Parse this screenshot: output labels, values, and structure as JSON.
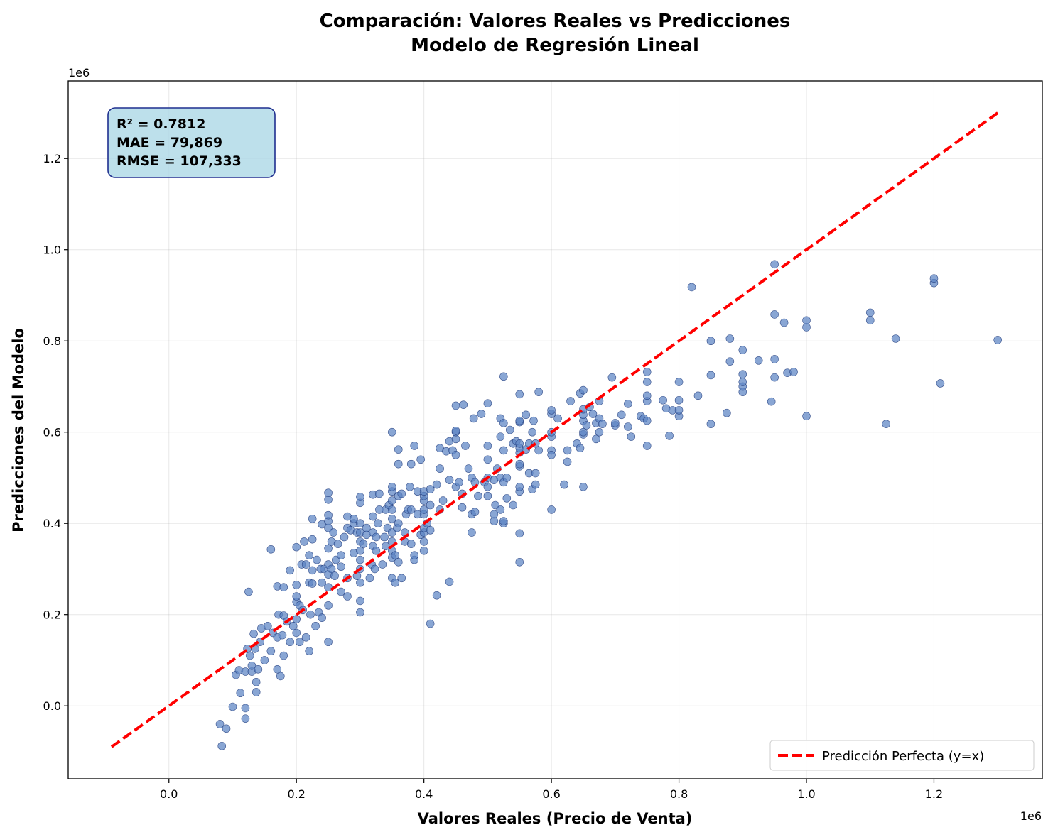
{
  "chart_data": {
    "type": "scatter",
    "title_line1": "Comparación: Valores Reales vs Predicciones",
    "title_line2": "Modelo de Regresión Lineal",
    "xlabel": "Valores Reales (Precio de Venta)",
    "ylabel": "Predicciones del Modelo",
    "x_offset_label": "1e6",
    "y_offset_label": "1e6",
    "xlim": [
      -0.158,
      1.37
    ],
    "ylim": [
      -0.16,
      1.37
    ],
    "x_ticks": [
      0.0,
      0.2,
      0.4,
      0.6,
      0.8,
      1.0,
      1.2
    ],
    "x_tick_labels": [
      "0.0",
      "0.2",
      "0.4",
      "0.6",
      "0.8",
      "1.0",
      "1.2"
    ],
    "y_ticks": [
      0.0,
      0.2,
      0.4,
      0.6,
      0.8,
      1.0,
      1.2
    ],
    "y_tick_labels": [
      "0.0",
      "0.2",
      "0.4",
      "0.6",
      "0.8",
      "1.0",
      "1.2"
    ],
    "grid": true,
    "legend_position": "bottom-right",
    "stats": {
      "r2": "R² = 0.7812",
      "mae": "MAE = 79,869",
      "rmse": "RMSE = 107,333"
    },
    "reference_line": {
      "name": "Predicción Perfecta (y=x)",
      "x": [
        -0.09,
        1.3
      ],
      "y": [
        -0.09,
        1.3
      ],
      "color": "#ff0000"
    },
    "point_color": "#5b84c4",
    "point_edge_color": "#1f3a7a",
    "points": [
      [
        0.08,
        -0.04
      ],
      [
        0.083,
        -0.088
      ],
      [
        0.09,
        -0.05
      ],
      [
        0.1,
        -0.002
      ],
      [
        0.105,
        0.068
      ],
      [
        0.11,
        0.078
      ],
      [
        0.112,
        0.028
      ],
      [
        0.12,
        -0.005
      ],
      [
        0.12,
        -0.028
      ],
      [
        0.12,
        0.075
      ],
      [
        0.123,
        0.125
      ],
      [
        0.125,
        0.25
      ],
      [
        0.127,
        0.11
      ],
      [
        0.13,
        0.075
      ],
      [
        0.13,
        0.088
      ],
      [
        0.133,
        0.158
      ],
      [
        0.135,
        0.125
      ],
      [
        0.137,
        0.052
      ],
      [
        0.137,
        0.03
      ],
      [
        0.14,
        0.08
      ],
      [
        0.143,
        0.14
      ],
      [
        0.145,
        0.17
      ],
      [
        0.15,
        0.1
      ],
      [
        0.155,
        0.175
      ],
      [
        0.16,
        0.12
      ],
      [
        0.16,
        0.343
      ],
      [
        0.163,
        0.16
      ],
      [
        0.17,
        0.262
      ],
      [
        0.17,
        0.15
      ],
      [
        0.17,
        0.08
      ],
      [
        0.172,
        0.2
      ],
      [
        0.175,
        0.065
      ],
      [
        0.178,
        0.155
      ],
      [
        0.18,
        0.11
      ],
      [
        0.18,
        0.198
      ],
      [
        0.18,
        0.26
      ],
      [
        0.185,
        0.185
      ],
      [
        0.19,
        0.14
      ],
      [
        0.19,
        0.297
      ],
      [
        0.195,
        0.175
      ],
      [
        0.2,
        0.16
      ],
      [
        0.2,
        0.19
      ],
      [
        0.2,
        0.228
      ],
      [
        0.2,
        0.24
      ],
      [
        0.2,
        0.265
      ],
      [
        0.2,
        0.348
      ],
      [
        0.205,
        0.14
      ],
      [
        0.205,
        0.22
      ],
      [
        0.208,
        0.31
      ],
      [
        0.21,
        0.21
      ],
      [
        0.212,
        0.36
      ],
      [
        0.215,
        0.15
      ],
      [
        0.215,
        0.31
      ],
      [
        0.22,
        0.12
      ],
      [
        0.22,
        0.27
      ],
      [
        0.22,
        0.33
      ],
      [
        0.222,
        0.2
      ],
      [
        0.225,
        0.268
      ],
      [
        0.225,
        0.297
      ],
      [
        0.225,
        0.365
      ],
      [
        0.225,
        0.41
      ],
      [
        0.23,
        0.175
      ],
      [
        0.232,
        0.32
      ],
      [
        0.235,
        0.205
      ],
      [
        0.238,
        0.3
      ],
      [
        0.24,
        0.27
      ],
      [
        0.24,
        0.193
      ],
      [
        0.24,
        0.398
      ],
      [
        0.243,
        0.3
      ],
      [
        0.25,
        0.14
      ],
      [
        0.25,
        0.22
      ],
      [
        0.25,
        0.26
      ],
      [
        0.25,
        0.288
      ],
      [
        0.25,
        0.31
      ],
      [
        0.25,
        0.345
      ],
      [
        0.25,
        0.39
      ],
      [
        0.25,
        0.405
      ],
      [
        0.25,
        0.418
      ],
      [
        0.25,
        0.452
      ],
      [
        0.25,
        0.467
      ],
      [
        0.255,
        0.3
      ],
      [
        0.255,
        0.36
      ],
      [
        0.258,
        0.38
      ],
      [
        0.26,
        0.285
      ],
      [
        0.262,
        0.32
      ],
      [
        0.265,
        0.355
      ],
      [
        0.27,
        0.25
      ],
      [
        0.27,
        0.305
      ],
      [
        0.27,
        0.33
      ],
      [
        0.275,
        0.37
      ],
      [
        0.28,
        0.24
      ],
      [
        0.28,
        0.28
      ],
      [
        0.28,
        0.39
      ],
      [
        0.28,
        0.415
      ],
      [
        0.285,
        0.385
      ],
      [
        0.29,
        0.335
      ],
      [
        0.29,
        0.4
      ],
      [
        0.29,
        0.41
      ],
      [
        0.295,
        0.285
      ],
      [
        0.295,
        0.38
      ],
      [
        0.3,
        0.205
      ],
      [
        0.3,
        0.23
      ],
      [
        0.3,
        0.27
      ],
      [
        0.3,
        0.3
      ],
      [
        0.3,
        0.32
      ],
      [
        0.3,
        0.34
      ],
      [
        0.3,
        0.36
      ],
      [
        0.3,
        0.38
      ],
      [
        0.3,
        0.4
      ],
      [
        0.3,
        0.445
      ],
      [
        0.3,
        0.458
      ],
      [
        0.305,
        0.355
      ],
      [
        0.31,
        0.375
      ],
      [
        0.31,
        0.39
      ],
      [
        0.315,
        0.28
      ],
      [
        0.318,
        0.31
      ],
      [
        0.32,
        0.35
      ],
      [
        0.32,
        0.38
      ],
      [
        0.32,
        0.415
      ],
      [
        0.32,
        0.463
      ],
      [
        0.323,
        0.3
      ],
      [
        0.325,
        0.34
      ],
      [
        0.325,
        0.37
      ],
      [
        0.328,
        0.4
      ],
      [
        0.33,
        0.43
      ],
      [
        0.33,
        0.465
      ],
      [
        0.335,
        0.31
      ],
      [
        0.338,
        0.37
      ],
      [
        0.34,
        0.35
      ],
      [
        0.34,
        0.43
      ],
      [
        0.343,
        0.39
      ],
      [
        0.345,
        0.44
      ],
      [
        0.35,
        0.28
      ],
      [
        0.35,
        0.325
      ],
      [
        0.35,
        0.34
      ],
      [
        0.35,
        0.36
      ],
      [
        0.35,
        0.38
      ],
      [
        0.35,
        0.41
      ],
      [
        0.35,
        0.43
      ],
      [
        0.35,
        0.45
      ],
      [
        0.35,
        0.47
      ],
      [
        0.35,
        0.48
      ],
      [
        0.35,
        0.6
      ],
      [
        0.355,
        0.27
      ],
      [
        0.355,
        0.33
      ],
      [
        0.358,
        0.39
      ],
      [
        0.36,
        0.315
      ],
      [
        0.36,
        0.4
      ],
      [
        0.36,
        0.46
      ],
      [
        0.36,
        0.53
      ],
      [
        0.36,
        0.562
      ],
      [
        0.365,
        0.28
      ],
      [
        0.365,
        0.465
      ],
      [
        0.37,
        0.36
      ],
      [
        0.37,
        0.38
      ],
      [
        0.372,
        0.42
      ],
      [
        0.375,
        0.43
      ],
      [
        0.378,
        0.48
      ],
      [
        0.38,
        0.355
      ],
      [
        0.38,
        0.43
      ],
      [
        0.38,
        0.53
      ],
      [
        0.385,
        0.32
      ],
      [
        0.385,
        0.33
      ],
      [
        0.385,
        0.57
      ],
      [
        0.39,
        0.42
      ],
      [
        0.39,
        0.47
      ],
      [
        0.395,
        0.375
      ],
      [
        0.395,
        0.54
      ],
      [
        0.4,
        0.34
      ],
      [
        0.4,
        0.36
      ],
      [
        0.4,
        0.38
      ],
      [
        0.4,
        0.39
      ],
      [
        0.4,
        0.42
      ],
      [
        0.4,
        0.43
      ],
      [
        0.4,
        0.45
      ],
      [
        0.4,
        0.46
      ],
      [
        0.4,
        0.47
      ],
      [
        0.405,
        0.4
      ],
      [
        0.41,
        0.18
      ],
      [
        0.41,
        0.385
      ],
      [
        0.41,
        0.44
      ],
      [
        0.41,
        0.475
      ],
      [
        0.42,
        0.242
      ],
      [
        0.42,
        0.485
      ],
      [
        0.425,
        0.43
      ],
      [
        0.425,
        0.52
      ],
      [
        0.425,
        0.565
      ],
      [
        0.43,
        0.45
      ],
      [
        0.435,
        0.558
      ],
      [
        0.44,
        0.272
      ],
      [
        0.44,
        0.495
      ],
      [
        0.44,
        0.58
      ],
      [
        0.445,
        0.56
      ],
      [
        0.45,
        0.48
      ],
      [
        0.45,
        0.55
      ],
      [
        0.45,
        0.585
      ],
      [
        0.45,
        0.6
      ],
      [
        0.45,
        0.603
      ],
      [
        0.45,
        0.658
      ],
      [
        0.455,
        0.49
      ],
      [
        0.46,
        0.435
      ],
      [
        0.46,
        0.465
      ],
      [
        0.462,
        0.66
      ],
      [
        0.465,
        0.57
      ],
      [
        0.47,
        0.52
      ],
      [
        0.475,
        0.38
      ],
      [
        0.475,
        0.42
      ],
      [
        0.475,
        0.5
      ],
      [
        0.478,
        0.63
      ],
      [
        0.48,
        0.425
      ],
      [
        0.48,
        0.49
      ],
      [
        0.485,
        0.46
      ],
      [
        0.49,
        0.64
      ],
      [
        0.495,
        0.49
      ],
      [
        0.5,
        0.48
      ],
      [
        0.5,
        0.46
      ],
      [
        0.5,
        0.5
      ],
      [
        0.5,
        0.54
      ],
      [
        0.5,
        0.57
      ],
      [
        0.5,
        0.663
      ],
      [
        0.51,
        0.405
      ],
      [
        0.51,
        0.42
      ],
      [
        0.51,
        0.495
      ],
      [
        0.512,
        0.44
      ],
      [
        0.515,
        0.52
      ],
      [
        0.52,
        0.43
      ],
      [
        0.52,
        0.5
      ],
      [
        0.52,
        0.59
      ],
      [
        0.52,
        0.63
      ],
      [
        0.525,
        0.4
      ],
      [
        0.525,
        0.405
      ],
      [
        0.525,
        0.49
      ],
      [
        0.525,
        0.56
      ],
      [
        0.525,
        0.62
      ],
      [
        0.525,
        0.722
      ],
      [
        0.53,
        0.455
      ],
      [
        0.53,
        0.5
      ],
      [
        0.535,
        0.605
      ],
      [
        0.54,
        0.44
      ],
      [
        0.54,
        0.575
      ],
      [
        0.545,
        0.58
      ],
      [
        0.55,
        0.315
      ],
      [
        0.55,
        0.378
      ],
      [
        0.55,
        0.47
      ],
      [
        0.55,
        0.48
      ],
      [
        0.55,
        0.525
      ],
      [
        0.55,
        0.53
      ],
      [
        0.55,
        0.555
      ],
      [
        0.55,
        0.565
      ],
      [
        0.55,
        0.575
      ],
      [
        0.55,
        0.622
      ],
      [
        0.55,
        0.625
      ],
      [
        0.55,
        0.683
      ],
      [
        0.56,
        0.562
      ],
      [
        0.56,
        0.638
      ],
      [
        0.565,
        0.51
      ],
      [
        0.565,
        0.575
      ],
      [
        0.57,
        0.475
      ],
      [
        0.57,
        0.6
      ],
      [
        0.572,
        0.625
      ],
      [
        0.575,
        0.485
      ],
      [
        0.575,
        0.51
      ],
      [
        0.575,
        0.575
      ],
      [
        0.58,
        0.56
      ],
      [
        0.58,
        0.688
      ],
      [
        0.6,
        0.43
      ],
      [
        0.6,
        0.56
      ],
      [
        0.6,
        0.55
      ],
      [
        0.6,
        0.59
      ],
      [
        0.6,
        0.6
      ],
      [
        0.6,
        0.64
      ],
      [
        0.6,
        0.648
      ],
      [
        0.61,
        0.63
      ],
      [
        0.62,
        0.485
      ],
      [
        0.625,
        0.535
      ],
      [
        0.625,
        0.56
      ],
      [
        0.63,
        0.668
      ],
      [
        0.64,
        0.575
      ],
      [
        0.645,
        0.565
      ],
      [
        0.645,
        0.685
      ],
      [
        0.65,
        0.48
      ],
      [
        0.65,
        0.595
      ],
      [
        0.65,
        0.6
      ],
      [
        0.65,
        0.625
      ],
      [
        0.65,
        0.638
      ],
      [
        0.65,
        0.65
      ],
      [
        0.65,
        0.692
      ],
      [
        0.655,
        0.615
      ],
      [
        0.66,
        0.655
      ],
      [
        0.665,
        0.64
      ],
      [
        0.67,
        0.585
      ],
      [
        0.67,
        0.62
      ],
      [
        0.675,
        0.6
      ],
      [
        0.675,
        0.63
      ],
      [
        0.675,
        0.668
      ],
      [
        0.68,
        0.618
      ],
      [
        0.695,
        0.72
      ],
      [
        0.7,
        0.615
      ],
      [
        0.7,
        0.62
      ],
      [
        0.71,
        0.638
      ],
      [
        0.72,
        0.612
      ],
      [
        0.72,
        0.662
      ],
      [
        0.725,
        0.59
      ],
      [
        0.74,
        0.635
      ],
      [
        0.745,
        0.63
      ],
      [
        0.75,
        0.57
      ],
      [
        0.75,
        0.625
      ],
      [
        0.75,
        0.668
      ],
      [
        0.75,
        0.68
      ],
      [
        0.75,
        0.71
      ],
      [
        0.75,
        0.732
      ],
      [
        0.775,
        0.67
      ],
      [
        0.78,
        0.652
      ],
      [
        0.785,
        0.592
      ],
      [
        0.79,
        0.648
      ],
      [
        0.8,
        0.635
      ],
      [
        0.8,
        0.648
      ],
      [
        0.8,
        0.67
      ],
      [
        0.8,
        0.71
      ],
      [
        0.82,
        0.918
      ],
      [
        0.83,
        0.68
      ],
      [
        0.85,
        0.618
      ],
      [
        0.85,
        0.725
      ],
      [
        0.85,
        0.8
      ],
      [
        0.875,
        0.642
      ],
      [
        0.88,
        0.755
      ],
      [
        0.88,
        0.805
      ],
      [
        0.9,
        0.688
      ],
      [
        0.9,
        0.7
      ],
      [
        0.9,
        0.71
      ],
      [
        0.9,
        0.727
      ],
      [
        0.9,
        0.78
      ],
      [
        0.925,
        0.757
      ],
      [
        0.945,
        0.667
      ],
      [
        0.95,
        0.72
      ],
      [
        0.95,
        0.76
      ],
      [
        0.95,
        0.858
      ],
      [
        0.95,
        0.968
      ],
      [
        0.965,
        0.84
      ],
      [
        0.97,
        0.73
      ],
      [
        0.98,
        0.732
      ],
      [
        1.0,
        0.635
      ],
      [
        1.0,
        0.83
      ],
      [
        1.0,
        0.845
      ],
      [
        1.1,
        0.845
      ],
      [
        1.1,
        0.862
      ],
      [
        1.125,
        0.618
      ],
      [
        1.14,
        0.805
      ],
      [
        1.2,
        0.927
      ],
      [
        1.2,
        0.937
      ],
      [
        1.21,
        0.707
      ],
      [
        1.3,
        0.802
      ]
    ]
  }
}
